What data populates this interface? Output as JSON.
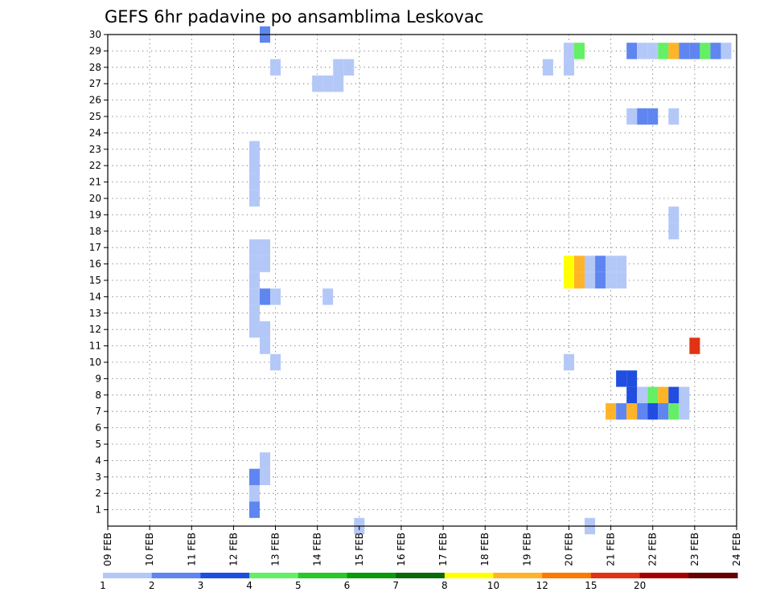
{
  "chart_data": {
    "type": "heatmap",
    "title": "GEFS 6hr padavine po ansamblima Leskovac",
    "x_ticks": [
      "09 FEB",
      "10 FEB",
      "11 FEB",
      "12 FEB",
      "13 FEB",
      "14 FEB",
      "15 FEB",
      "16 FEB",
      "17 FEB",
      "18 FEB",
      "19 FEB",
      "20 FEB",
      "21 FEB",
      "22 FEB",
      "23 FEB",
      "24 FEB"
    ],
    "y_ticks": [
      "1",
      "2",
      "3",
      "4",
      "5",
      "6",
      "7",
      "8",
      "9",
      "10",
      "11",
      "12",
      "13",
      "14",
      "15",
      "16",
      "17",
      "18",
      "19",
      "20",
      "21",
      "22",
      "23",
      "24",
      "25",
      "26",
      "27",
      "28",
      "29",
      "30"
    ],
    "y_range": [
      0,
      30
    ],
    "x_unit": "days from 09 FEB",
    "grid": true,
    "colorbar": {
      "labels": [
        "1",
        "2",
        "3",
        "4",
        "5",
        "6",
        "7",
        "8",
        "10",
        "12",
        "15",
        "20"
      ],
      "colors": [
        "#b4c8f8",
        "#5f86f0",
        "#1f4ee0",
        "#64f064",
        "#28c828",
        "#0a9a0a",
        "#0a6a0a",
        "#ffff00",
        "#ffb428",
        "#ff7800",
        "#e13214",
        "#a50000",
        "#640000"
      ]
    },
    "cells": [
      {
        "day": 3.75,
        "member": 30,
        "value": 2
      },
      {
        "day": 3.75,
        "member": 17,
        "value": 1
      },
      {
        "day": 3.75,
        "member": 16,
        "value": 1
      },
      {
        "day": 3.5,
        "member": 23,
        "value": 1
      },
      {
        "day": 3.5,
        "member": 22,
        "value": 1
      },
      {
        "day": 3.5,
        "member": 21,
        "value": 1
      },
      {
        "day": 3.5,
        "member": 20,
        "value": 1
      },
      {
        "day": 3.5,
        "member": 17,
        "value": 1
      },
      {
        "day": 3.5,
        "member": 16,
        "value": 1
      },
      {
        "day": 3.5,
        "member": 15,
        "value": 1
      },
      {
        "day": 3.5,
        "member": 14,
        "value": 1
      },
      {
        "day": 3.5,
        "member": 13,
        "value": 1
      },
      {
        "day": 3.5,
        "member": 12,
        "value": 1
      },
      {
        "day": 3.75,
        "member": 14,
        "value": 2
      },
      {
        "day": 4.0,
        "member": 14,
        "value": 1
      },
      {
        "day": 3.75,
        "member": 12,
        "value": 1
      },
      {
        "day": 3.75,
        "member": 11,
        "value": 1
      },
      {
        "day": 4.0,
        "member": 28,
        "value": 1
      },
      {
        "day": 4.0,
        "member": 10,
        "value": 1
      },
      {
        "day": 3.75,
        "member": 4,
        "value": 1
      },
      {
        "day": 3.75,
        "member": 3,
        "value": 1
      },
      {
        "day": 3.5,
        "member": 3,
        "value": 2
      },
      {
        "day": 3.5,
        "member": 2,
        "value": 1
      },
      {
        "day": 3.5,
        "member": 1,
        "value": 2
      },
      {
        "day": 5.0,
        "member": 27,
        "value": 1
      },
      {
        "day": 5.25,
        "member": 27,
        "value": 1
      },
      {
        "day": 5.5,
        "member": 27,
        "value": 1
      },
      {
        "day": 5.5,
        "member": 28,
        "value": 1
      },
      {
        "day": 5.75,
        "member": 28,
        "value": 1
      },
      {
        "day": 5.25,
        "member": 14,
        "value": 1
      },
      {
        "day": 6.0,
        "member": 0,
        "value": 1
      },
      {
        "day": 10.5,
        "member": 28,
        "value": 1
      },
      {
        "day": 11.0,
        "member": 29,
        "value": 1
      },
      {
        "day": 11.25,
        "member": 29,
        "value": 4
      },
      {
        "day": 11.0,
        "member": 28,
        "value": 1
      },
      {
        "day": 12.5,
        "member": 29,
        "value": 2
      },
      {
        "day": 12.75,
        "member": 29,
        "value": 1
      },
      {
        "day": 13.0,
        "member": 29,
        "value": 1
      },
      {
        "day": 13.25,
        "member": 29,
        "value": 4
      },
      {
        "day": 13.5,
        "member": 29,
        "value": 10
      },
      {
        "day": 13.75,
        "member": 29,
        "value": 2
      },
      {
        "day": 14.0,
        "member": 29,
        "value": 2
      },
      {
        "day": 14.25,
        "member": 29,
        "value": 4
      },
      {
        "day": 14.5,
        "member": 29,
        "value": 2
      },
      {
        "day": 14.75,
        "member": 29,
        "value": 1
      },
      {
        "day": 12.5,
        "member": 25,
        "value": 1
      },
      {
        "day": 12.75,
        "member": 25,
        "value": 2
      },
      {
        "day": 13.0,
        "member": 25,
        "value": 2
      },
      {
        "day": 13.5,
        "member": 25,
        "value": 1
      },
      {
        "day": 13.5,
        "member": 19,
        "value": 1
      },
      {
        "day": 13.5,
        "member": 18,
        "value": 1
      },
      {
        "day": 11.0,
        "member": 16,
        "value": 8
      },
      {
        "day": 11.25,
        "member": 16,
        "value": 10
      },
      {
        "day": 11.5,
        "member": 16,
        "value": 1
      },
      {
        "day": 11.75,
        "member": 16,
        "value": 2
      },
      {
        "day": 12.0,
        "member": 16,
        "value": 1
      },
      {
        "day": 12.25,
        "member": 16,
        "value": 1
      },
      {
        "day": 11.0,
        "member": 15,
        "value": 8
      },
      {
        "day": 11.25,
        "member": 15,
        "value": 10
      },
      {
        "day": 11.5,
        "member": 15,
        "value": 1
      },
      {
        "day": 11.75,
        "member": 15,
        "value": 2
      },
      {
        "day": 12.0,
        "member": 15,
        "value": 1
      },
      {
        "day": 12.25,
        "member": 15,
        "value": 1
      },
      {
        "day": 14.0,
        "member": 11,
        "value": 15
      },
      {
        "day": 11.0,
        "member": 10,
        "value": 1
      },
      {
        "day": 12.25,
        "member": 9,
        "value": 3
      },
      {
        "day": 12.5,
        "member": 9,
        "value": 3
      },
      {
        "day": 12.5,
        "member": 8,
        "value": 3
      },
      {
        "day": 12.75,
        "member": 8,
        "value": 1
      },
      {
        "day": 13.0,
        "member": 8,
        "value": 4
      },
      {
        "day": 13.25,
        "member": 8,
        "value": 10
      },
      {
        "day": 13.5,
        "member": 8,
        "value": 3
      },
      {
        "day": 13.75,
        "member": 8,
        "value": 1
      },
      {
        "day": 12.0,
        "member": 7,
        "value": 10
      },
      {
        "day": 12.25,
        "member": 7,
        "value": 2
      },
      {
        "day": 12.5,
        "member": 7,
        "value": 10
      },
      {
        "day": 12.75,
        "member": 7,
        "value": 2
      },
      {
        "day": 13.0,
        "member": 7,
        "value": 3
      },
      {
        "day": 13.25,
        "member": 7,
        "value": 2
      },
      {
        "day": 13.5,
        "member": 7,
        "value": 4
      },
      {
        "day": 13.75,
        "member": 7,
        "value": 1
      },
      {
        "day": 11.5,
        "member": 0,
        "value": 1
      }
    ]
  }
}
